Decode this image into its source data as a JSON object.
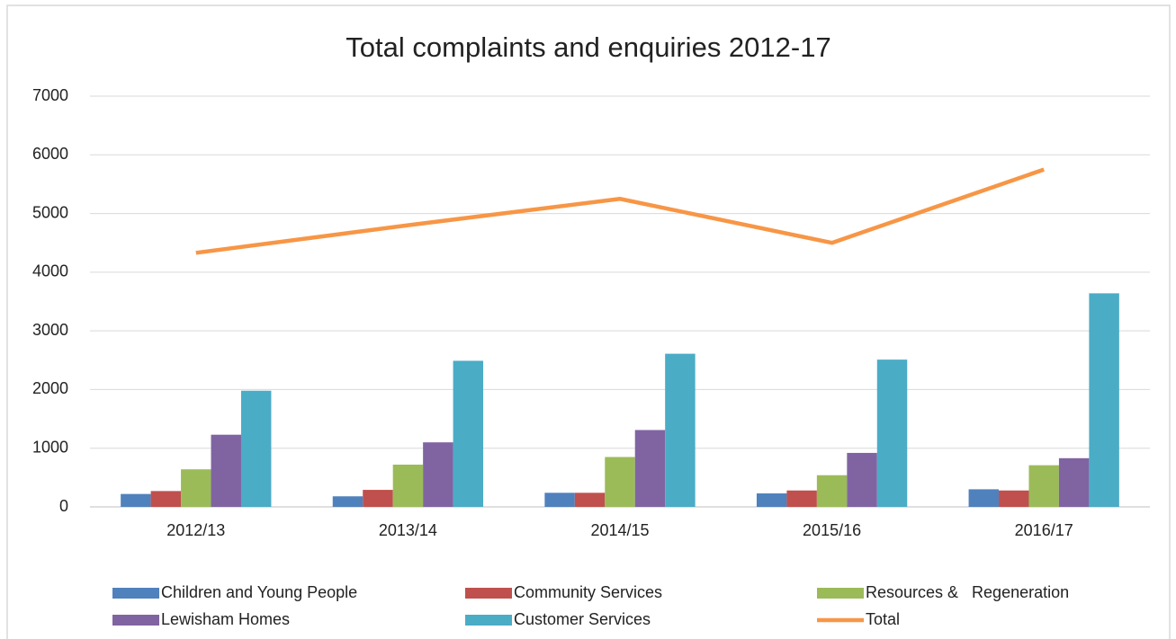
{
  "chart_data": {
    "type": "bar",
    "title": "Total complaints and enquiries 2012-17",
    "categories": [
      "2012/13",
      "2013/14",
      "2014/15",
      "2015/16",
      "2016/17"
    ],
    "series": [
      {
        "name": "Children and Young People",
        "color": "#4f81bd",
        "values": [
          220,
          180,
          240,
          230,
          300
        ]
      },
      {
        "name": "Community Services",
        "color": "#c0504d",
        "values": [
          270,
          290,
          240,
          280,
          280
        ]
      },
      {
        "name": "Resources &   Regeneration",
        "color": "#9bbb59",
        "values": [
          640,
          720,
          850,
          540,
          710
        ]
      },
      {
        "name": "Lewisham Homes",
        "color": "#8064a2",
        "values": [
          1230,
          1100,
          1310,
          920,
          830
        ]
      },
      {
        "name": "Customer Services",
        "color": "#4bacc6",
        "values": [
          1980,
          2490,
          2610,
          2510,
          3640
        ]
      },
      {
        "name": "Total",
        "color": "#f79646",
        "type": "line",
        "values": [
          4330,
          4800,
          5250,
          4500,
          5750
        ]
      }
    ],
    "ylim": [
      0,
      7000
    ],
    "yticks": [
      0,
      1000,
      2000,
      3000,
      4000,
      5000,
      6000,
      7000
    ],
    "grid": true
  }
}
